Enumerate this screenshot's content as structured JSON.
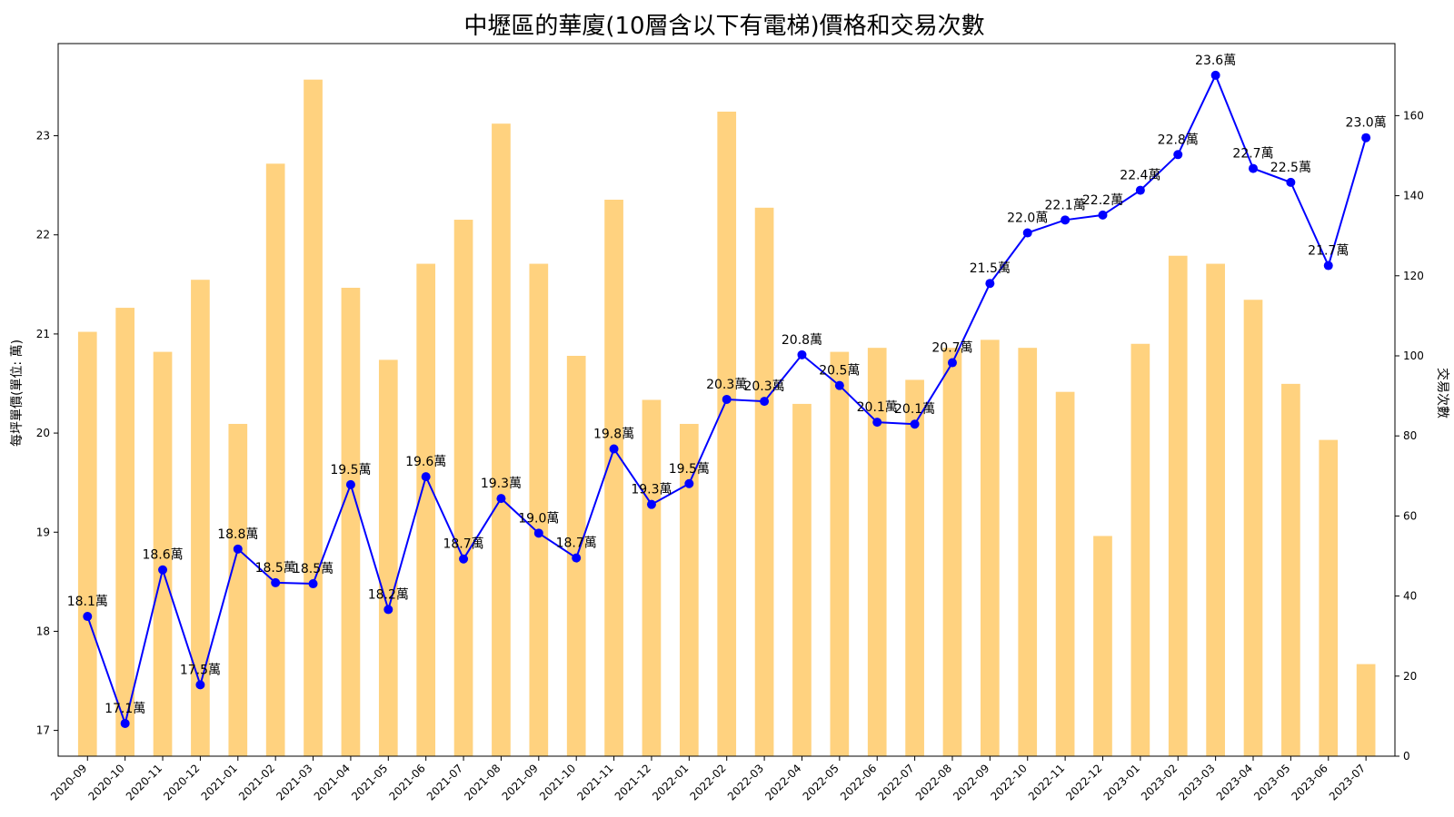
{
  "chart_data": {
    "type": "bar+line",
    "title": "中壢區的華廈(10層含以下有電梯)價格和交易次數",
    "ylabel_left": "每坪單價(單位: 萬)",
    "ylabel_right": "交易次數",
    "categories": [
      "2020-09",
      "2020-10",
      "2020-11",
      "2020-12",
      "2021-01",
      "2021-02",
      "2021-03",
      "2021-04",
      "2021-05",
      "2021-06",
      "2021-07",
      "2021-08",
      "2021-09",
      "2021-10",
      "2021-11",
      "2021-12",
      "2022-01",
      "2022-02",
      "2022-03",
      "2022-04",
      "2022-05",
      "2022-06",
      "2022-07",
      "2022-08",
      "2022-09",
      "2022-10",
      "2022-11",
      "2022-12",
      "2023-01",
      "2023-02",
      "2023-03",
      "2023-04",
      "2023-05",
      "2023-06",
      "2023-07"
    ],
    "series": [
      {
        "kind": "line",
        "axis": "left",
        "color": "#0000ff",
        "values": [
          18.15,
          17.07,
          18.62,
          17.46,
          18.83,
          18.49,
          18.48,
          19.48,
          18.22,
          19.56,
          18.73,
          19.34,
          18.99,
          18.74,
          19.84,
          19.28,
          19.49,
          20.34,
          20.32,
          20.79,
          20.48,
          20.11,
          20.09,
          20.71,
          21.51,
          22.02,
          22.15,
          22.2,
          22.45,
          22.81,
          23.61,
          22.67,
          22.53,
          21.69,
          22.98
        ],
        "labels": [
          "18.1萬",
          "17.1萬",
          "18.6萬",
          "17.5萬",
          "18.8萬",
          "18.5萬",
          "18.5萬",
          "19.5萬",
          "18.2萬",
          "19.6萬",
          "18.7萬",
          "19.3萬",
          "19.0萬",
          "18.7萬",
          "19.8萬",
          "19.3萬",
          "19.5萬",
          "20.3萬",
          "20.3萬",
          "20.8萬",
          "20.5萬",
          "20.1萬",
          "20.1萬",
          "20.7萬",
          "21.5萬",
          "22.0萬",
          "22.1萬",
          "22.2萬",
          "22.4萬",
          "22.8萬",
          "23.6萬",
          "22.7萬",
          "22.5萬",
          "21.7萬",
          "23.0萬"
        ]
      },
      {
        "kind": "bar",
        "axis": "right",
        "color": "#ffa500",
        "opacity": 0.5,
        "values": [
          106,
          112,
          101,
          119,
          83,
          148,
          169,
          117,
          99,
          123,
          134,
          158,
          123,
          100,
          139,
          89,
          83,
          161,
          137,
          88,
          101,
          102,
          94,
          102,
          104,
          102,
          91,
          55,
          103,
          125,
          123,
          114,
          93,
          79,
          23
        ]
      }
    ],
    "ylim_left": [
      16.74,
      23.93
    ],
    "ylim_right": [
      0,
      178
    ],
    "yticks_left": [
      "17",
      "18",
      "19",
      "20",
      "21",
      "22",
      "23"
    ],
    "yticks_right": [
      "0",
      "20",
      "40",
      "60",
      "80",
      "100",
      "120",
      "140",
      "160"
    ],
    "grid": false,
    "legend": "none"
  }
}
